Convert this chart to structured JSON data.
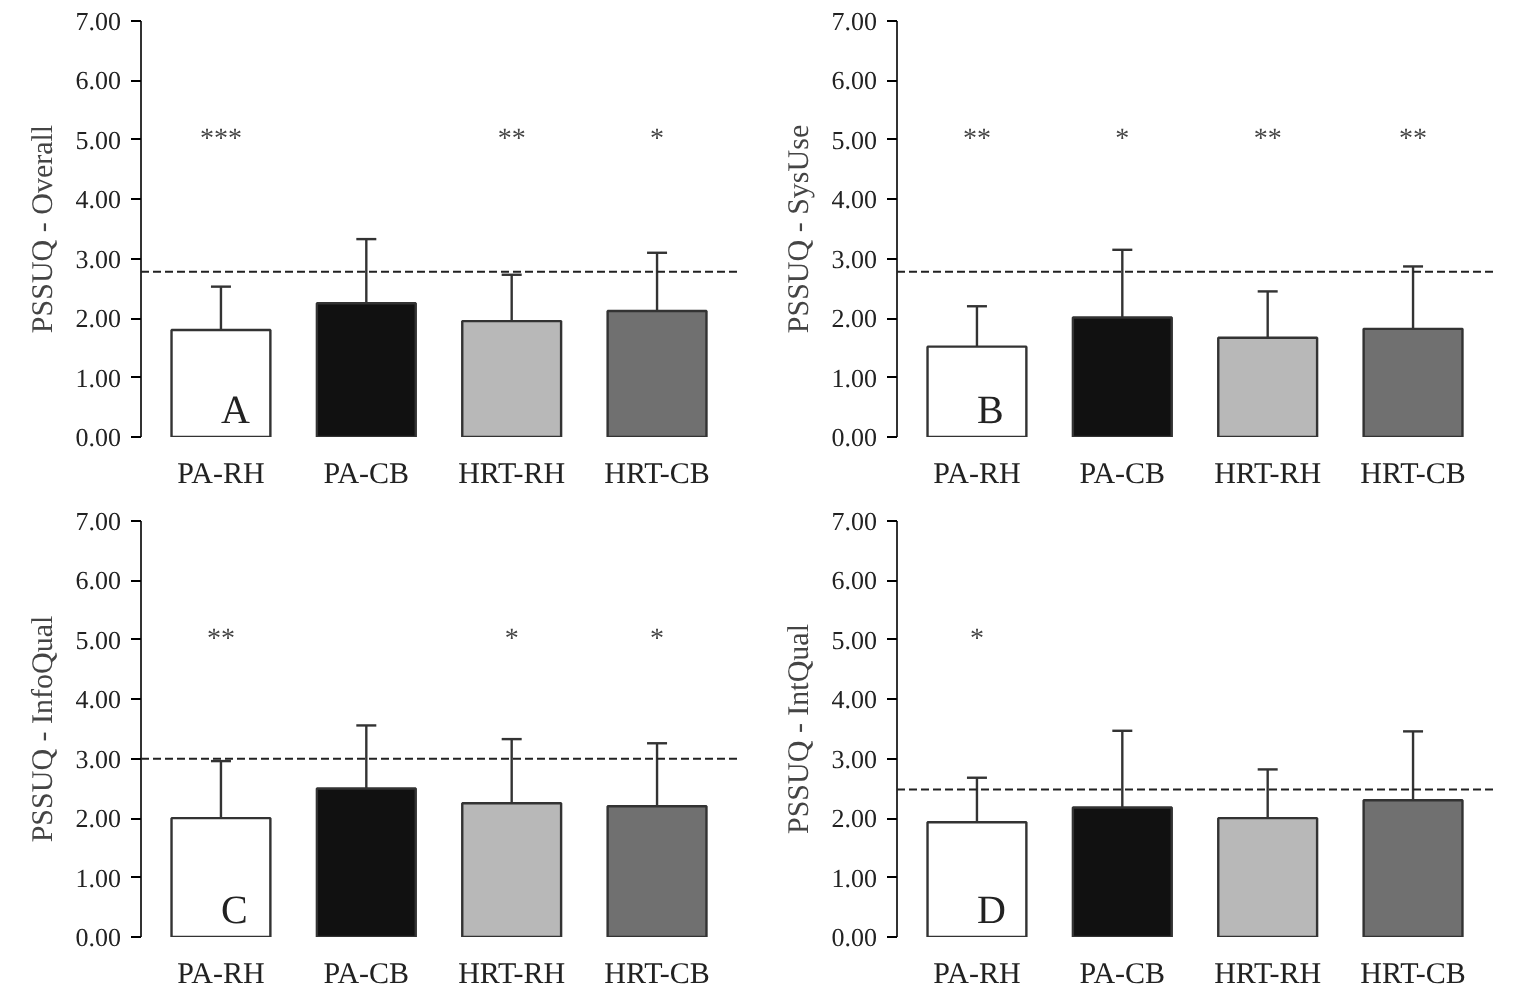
{
  "chart_data": [
    {
      "type": "bar",
      "ylabel": "PSSUQ - Overall",
      "categories": [
        "PA-RH",
        "PA-CB",
        "HRT-RH",
        "HRT-CB"
      ],
      "values": [
        1.8,
        2.25,
        1.95,
        2.12
      ],
      "colors": [
        "#ffffff",
        "#111111",
        "#b8b8b8",
        "#707070"
      ],
      "errors": [
        [
          1.8,
          2.53
        ],
        [
          2.25,
          3.33
        ],
        [
          1.95,
          2.73
        ],
        [
          2.12,
          3.1
        ]
      ],
      "ylim": [
        0,
        7
      ],
      "yticks": [
        {
          "value": 0,
          "label": "0.00"
        },
        {
          "value": 1,
          "label": "1.00"
        },
        {
          "value": 2,
          "label": "2.00"
        },
        {
          "value": 3,
          "label": "3.00"
        },
        {
          "value": 4,
          "label": "4.00"
        },
        {
          "value": 5,
          "label": "5.00"
        },
        {
          "value": 6,
          "label": "6.00"
        },
        {
          "value": 7,
          "label": "7.00"
        }
      ],
      "grid": false,
      "ref_lines": [
        {
          "axis": "y",
          "value": 2.78,
          "line_style": "dashed"
        }
      ],
      "annotations": [
        "A",
        "***",
        "**",
        "*"
      ]
    },
    {
      "type": "bar",
      "ylabel": "PSSUQ - SysUse",
      "categories": [
        "PA-RH",
        "PA-CB",
        "HRT-RH",
        "HRT-CB"
      ],
      "values": [
        1.52,
        2.01,
        1.67,
        1.82
      ],
      "colors": [
        "#ffffff",
        "#111111",
        "#b8b8b8",
        "#707070"
      ],
      "errors": [
        [
          1.52,
          2.2
        ],
        [
          2.01,
          3.15
        ],
        [
          1.67,
          2.45
        ],
        [
          1.82,
          2.87
        ]
      ],
      "ylim": [
        0,
        7
      ],
      "yticks": [
        {
          "value": 0,
          "label": "0.00"
        },
        {
          "value": 1,
          "label": "1.00"
        },
        {
          "value": 2,
          "label": "2.00"
        },
        {
          "value": 3,
          "label": "3.00"
        },
        {
          "value": 4,
          "label": "4.00"
        },
        {
          "value": 5,
          "label": "5.00"
        },
        {
          "value": 6,
          "label": "6.00"
        },
        {
          "value": 7,
          "label": "7.00"
        }
      ],
      "grid": false,
      "ref_lines": [
        {
          "axis": "y",
          "value": 2.78,
          "line_style": "dashed"
        }
      ],
      "annotations": [
        "B",
        "**",
        "*",
        "**",
        "**"
      ]
    },
    {
      "type": "bar",
      "ylabel": "PSSUQ - InfoQual",
      "categories": [
        "PA-RH",
        "PA-CB",
        "HRT-RH",
        "HRT-CB"
      ],
      "values": [
        2.0,
        2.5,
        2.25,
        2.2
      ],
      "colors": [
        "#ffffff",
        "#111111",
        "#b8b8b8",
        "#707070"
      ],
      "errors": [
        [
          2.0,
          2.96
        ],
        [
          2.5,
          3.56
        ],
        [
          2.25,
          3.33
        ],
        [
          2.2,
          3.26
        ]
      ],
      "ylim": [
        0,
        7
      ],
      "yticks": [
        {
          "value": 0,
          "label": "0.00"
        },
        {
          "value": 1,
          "label": "1.00"
        },
        {
          "value": 2,
          "label": "2.00"
        },
        {
          "value": 3,
          "label": "3.00"
        },
        {
          "value": 4,
          "label": "4.00"
        },
        {
          "value": 5,
          "label": "5.00"
        },
        {
          "value": 6,
          "label": "6.00"
        },
        {
          "value": 7,
          "label": "7.00"
        }
      ],
      "grid": false,
      "ref_lines": [
        {
          "axis": "y",
          "value": 3.0,
          "line_style": "dashed"
        }
      ],
      "annotations": [
        "C",
        "**",
        "*",
        "*"
      ]
    },
    {
      "type": "bar",
      "ylabel": "PSSUQ - IntQual",
      "categories": [
        "PA-RH",
        "PA-CB",
        "HRT-RH",
        "HRT-CB"
      ],
      "values": [
        1.93,
        2.18,
        2.0,
        2.3
      ],
      "colors": [
        "#ffffff",
        "#111111",
        "#b8b8b8",
        "#707070"
      ],
      "errors": [
        [
          1.93,
          2.68
        ],
        [
          2.18,
          3.47
        ],
        [
          2.0,
          2.82
        ],
        [
          2.3,
          3.46
        ]
      ],
      "ylim": [
        0,
        7
      ],
      "yticks": [
        {
          "value": 0,
          "label": "0.00"
        },
        {
          "value": 1,
          "label": "1.00"
        },
        {
          "value": 2,
          "label": "2.00"
        },
        {
          "value": 3,
          "label": "3.00"
        },
        {
          "value": 4,
          "label": "4.00"
        },
        {
          "value": 5,
          "label": "5.00"
        },
        {
          "value": 6,
          "label": "6.00"
        },
        {
          "value": 7,
          "label": "7.00"
        }
      ],
      "grid": false,
      "ref_lines": [
        {
          "axis": "y",
          "value": 2.48,
          "line_style": "dashed"
        }
      ],
      "annotations": [
        "D",
        "*"
      ]
    }
  ]
}
